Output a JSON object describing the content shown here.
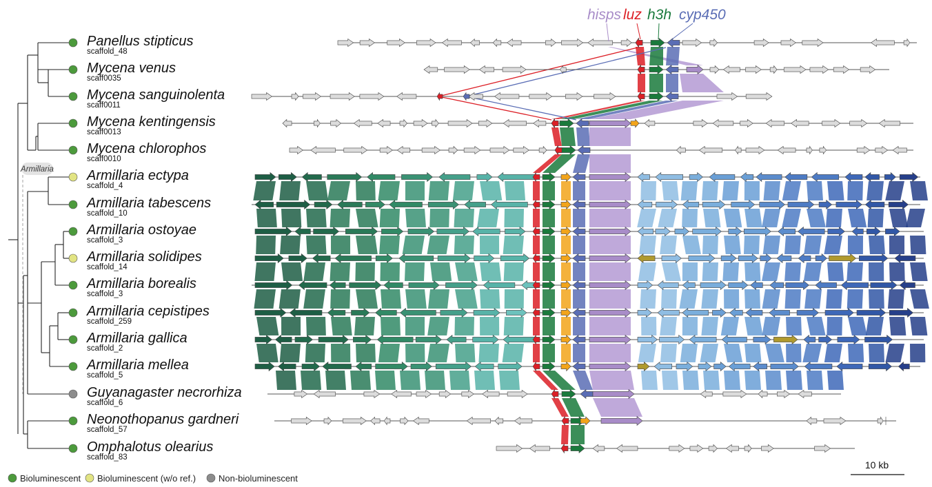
{
  "colors": {
    "bioluminescent": "#4c9a3c",
    "bioluminescent_wo_ref": "#e2e483",
    "non_bioluminescent": "#8c8c8c",
    "hisps": "#a88cc8",
    "luz": "#dc1f26",
    "h3h": "#1a7a3c",
    "cyp450": "#5a6db5",
    "other_gene": "#dcdcdc",
    "orange_gene": "#f2a41a",
    "olive_gene": "#b09a2e"
  },
  "gene_labels": {
    "hisps": "hisps",
    "luz": "luz",
    "h3h": "h3h",
    "cyp450": "cyp450"
  },
  "clade_label": "Armillaria",
  "species": [
    {
      "name": "Panellus stipticus",
      "scaffold": "scaffold_48",
      "status": "bioluminescent"
    },
    {
      "name": "Mycena venus",
      "scaffold": "scaff0035",
      "status": "bioluminescent"
    },
    {
      "name": "Mycena sanguinolenta",
      "scaffold": "scaff0011",
      "status": "bioluminescent"
    },
    {
      "name": "Mycena kentingensis",
      "scaffold": "scaff0013",
      "status": "bioluminescent"
    },
    {
      "name": "Mycena chlorophos",
      "scaffold": "scaff0010",
      "status": "bioluminescent"
    },
    {
      "name": "Armillaria ectypa",
      "scaffold": "scaffold_4",
      "status": "bioluminescent_wo_ref"
    },
    {
      "name": "Armillaria tabescens",
      "scaffold": "scaffold_10",
      "status": "bioluminescent"
    },
    {
      "name": "Armillaria ostoyae",
      "scaffold": "scaffold_3",
      "status": "bioluminescent"
    },
    {
      "name": "Armillaria solidipes",
      "scaffold": "scaffold_14",
      "status": "bioluminescent_wo_ref"
    },
    {
      "name": "Armillaria borealis",
      "scaffold": "scaffold_3",
      "status": "bioluminescent"
    },
    {
      "name": "Armillaria cepistipes",
      "scaffold": "scaffold_259",
      "status": "bioluminescent"
    },
    {
      "name": "Armillaria gallica",
      "scaffold": "scaffold_2",
      "status": "bioluminescent"
    },
    {
      "name": "Armillaria mellea",
      "scaffold": "scaffold_5",
      "status": "bioluminescent"
    },
    {
      "name": "Guyanagaster necrorhiza",
      "scaffold": "scaffold_6",
      "status": "non_bioluminescent"
    },
    {
      "name": "Neonothopanus gardneri",
      "scaffold": "scaffold_57",
      "status": "bioluminescent"
    },
    {
      "name": "Omphalotus olearius",
      "scaffold": "scaffold_83",
      "status": "bioluminescent"
    }
  ],
  "legend": [
    {
      "label": "Bioluminescent",
      "status": "bioluminescent"
    },
    {
      "label": "Bioluminescent (w/o ref.)",
      "status": "bioluminescent_wo_ref"
    },
    {
      "label": "Non-bioluminescent",
      "status": "non_bioluminescent"
    }
  ],
  "scale_bar": "10 kb"
}
